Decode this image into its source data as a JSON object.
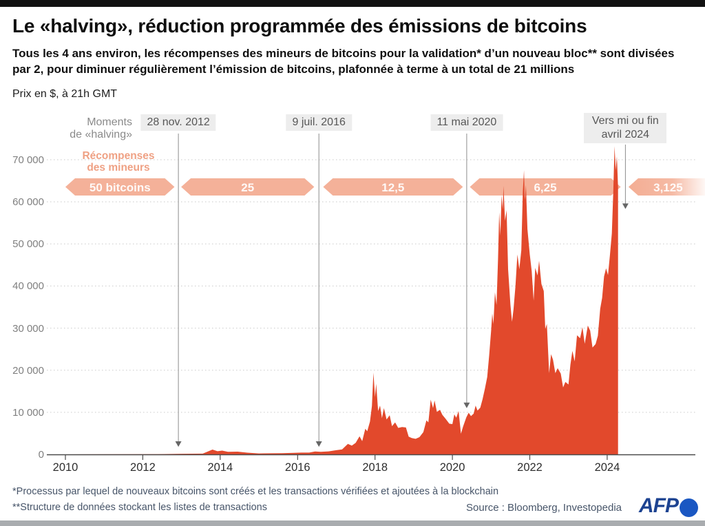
{
  "page": {
    "title": "Le «halving», réduction programmée des émissions de bitcoins",
    "subtitle": "Tous les 4 ans environ, les récompenses des mineurs de bitcoins pour la validation* d’un nouveau bloc** sont divisées par 2, pour diminuer régulièrement l’émission de bitcoins, plafonnée à terme à un total de 21 millions",
    "unit_note": "Prix en $, à 21h GMT"
  },
  "annotations": {
    "halving_moments_line1": "Moments",
    "halving_moments_line2": "de «halving»",
    "rewards_line1": "Récompenses",
    "rewards_line2": "des mineurs"
  },
  "footer": {
    "footnote1": "*Processus par lequel de nouveaux bitcoins sont créés et les transactions vérifiées et ajoutées à la blockchain",
    "footnote2": "**Structure de données stockant les listes de transactions",
    "source": "Source : Bloomberg, Investopedia",
    "logo_text": "AFP"
  },
  "colors": {
    "area_fill": "#e2492c",
    "banner_fill": "#f3a98e",
    "banner_text": "rgba(255,255,255,0.92)",
    "grid": "#c9c9c9",
    "axis": "#4b4b4b",
    "halving_line": "#8d8d8d",
    "arrowhead": "#666666"
  },
  "chart_data": {
    "type": "area",
    "title": "Le «halving», réduction programmée des émissions de bitcoins",
    "ylabel": "Prix en $, à 21h GMT",
    "xlabel": "",
    "grid": true,
    "ylim": [
      0,
      70000
    ],
    "xlim_years": [
      2009.55,
      2026.3
    ],
    "x_ticks": [
      {
        "year": 2010,
        "label": "2010"
      },
      {
        "year": 2012,
        "label": "2012"
      },
      {
        "year": 2014,
        "label": "2014"
      },
      {
        "year": 2016,
        "label": "2016"
      },
      {
        "year": 2018,
        "label": "2018"
      },
      {
        "year": 2020,
        "label": "2020"
      },
      {
        "year": 2022,
        "label": "2022"
      },
      {
        "year": 2024,
        "label": "2024"
      }
    ],
    "y_ticks": [
      {
        "value": 0,
        "label": "0"
      },
      {
        "value": 10000,
        "label": "10 000"
      },
      {
        "value": 20000,
        "label": "20 000"
      },
      {
        "value": 30000,
        "label": "30 000"
      },
      {
        "value": 40000,
        "label": "40 000"
      },
      {
        "value": 50000,
        "label": "50 000"
      },
      {
        "value": 60000,
        "label": "60 000"
      },
      {
        "value": 70000,
        "label": "70 000"
      }
    ],
    "halvings": [
      {
        "label": "28 nov. 2012",
        "year": 2012.92,
        "arrow_tip_value": 1800,
        "tall": false
      },
      {
        "label": "9 juil. 2016",
        "year": 2016.55,
        "arrow_tip_value": 1800,
        "tall": false
      },
      {
        "label": "11 mai 2020",
        "year": 2020.37,
        "arrow_tip_value": 11000,
        "tall": false
      },
      {
        "label": "Vers mi ou fin avril 2024",
        "year": 2024.47,
        "arrow_tip_value": 58300,
        "tall": true
      }
    ],
    "reward_banners": [
      {
        "label": "50 bitcoins",
        "from_year": 2010.0,
        "to_year": 2012.82,
        "fade_right": false
      },
      {
        "label": "25",
        "from_year": 2012.99,
        "to_year": 2016.43,
        "fade_right": false
      },
      {
        "label": "12,5",
        "from_year": 2016.66,
        "to_year": 2020.27,
        "fade_right": false
      },
      {
        "label": "6,25",
        "from_year": 2020.45,
        "to_year": 2024.35,
        "fade_right": false
      },
      {
        "label": "3,125",
        "from_year": 2024.55,
        "to_year": 2026.6,
        "fade_right": true
      }
    ],
    "series": [
      {
        "name": "Prix du bitcoin en $",
        "points": [
          [
            2010,
            0
          ],
          [
            2012.4,
            60
          ],
          [
            2013,
            140
          ],
          [
            2013.55,
            180
          ],
          [
            2013.8,
            1150
          ],
          [
            2013.93,
            760
          ],
          [
            2014.05,
            900
          ],
          [
            2014.2,
            620
          ],
          [
            2014.45,
            660
          ],
          [
            2014.7,
            410
          ],
          [
            2015,
            230
          ],
          [
            2015.3,
            260
          ],
          [
            2015.6,
            280
          ],
          [
            2015.9,
            380
          ],
          [
            2016.1,
            420
          ],
          [
            2016.3,
            430
          ],
          [
            2016.45,
            690
          ],
          [
            2016.6,
            620
          ],
          [
            2016.8,
            720
          ],
          [
            2017,
            990
          ],
          [
            2017.15,
            1200
          ],
          [
            2017.3,
            2500
          ],
          [
            2017.4,
            2100
          ],
          [
            2017.5,
            2750
          ],
          [
            2017.6,
            4300
          ],
          [
            2017.67,
            3150
          ],
          [
            2017.75,
            6100
          ],
          [
            2017.8,
            5500
          ],
          [
            2017.87,
            7800
          ],
          [
            2017.92,
            11500
          ],
          [
            2017.96,
            19400
          ],
          [
            2018,
            13600
          ],
          [
            2018.03,
            16800
          ],
          [
            2018.08,
            10300
          ],
          [
            2018.13,
            11600
          ],
          [
            2018.18,
            8600
          ],
          [
            2018.23,
            11000
          ],
          [
            2018.3,
            8300
          ],
          [
            2018.38,
            9300
          ],
          [
            2018.44,
            6700
          ],
          [
            2018.52,
            7600
          ],
          [
            2018.6,
            6300
          ],
          [
            2018.7,
            6500
          ],
          [
            2018.8,
            6400
          ],
          [
            2018.87,
            4200
          ],
          [
            2018.95,
            3900
          ],
          [
            2019.05,
            3700
          ],
          [
            2019.15,
            4100
          ],
          [
            2019.25,
            5300
          ],
          [
            2019.33,
            8100
          ],
          [
            2019.38,
            7600
          ],
          [
            2019.44,
            13000
          ],
          [
            2019.5,
            11000
          ],
          [
            2019.54,
            12800
          ],
          [
            2019.6,
            10100
          ],
          [
            2019.68,
            10600
          ],
          [
            2019.74,
            9400
          ],
          [
            2019.83,
            8400
          ],
          [
            2019.92,
            7300
          ],
          [
            2020,
            7200
          ],
          [
            2020.05,
            9500
          ],
          [
            2020.1,
            8700
          ],
          [
            2020.16,
            10300
          ],
          [
            2020.22,
            4900
          ],
          [
            2020.28,
            6700
          ],
          [
            2020.36,
            8800
          ],
          [
            2020.42,
            9900
          ],
          [
            2020.48,
            9100
          ],
          [
            2020.55,
            9700
          ],
          [
            2020.6,
            11600
          ],
          [
            2020.65,
            10400
          ],
          [
            2020.72,
            11100
          ],
          [
            2020.78,
            13100
          ],
          [
            2020.84,
            15600
          ],
          [
            2020.9,
            18400
          ],
          [
            2020.95,
            23500
          ],
          [
            2021,
            29300
          ],
          [
            2021.03,
            33500
          ],
          [
            2021.06,
            31000
          ],
          [
            2021.1,
            38500
          ],
          [
            2021.14,
            35500
          ],
          [
            2021.18,
            46500
          ],
          [
            2021.21,
            57500
          ],
          [
            2021.24,
            52000
          ],
          [
            2021.27,
            61500
          ],
          [
            2021.3,
            58200
          ],
          [
            2021.32,
            63800
          ],
          [
            2021.36,
            55500
          ],
          [
            2021.4,
            58000
          ],
          [
            2021.44,
            44000
          ],
          [
            2021.5,
            35500
          ],
          [
            2021.54,
            31500
          ],
          [
            2021.58,
            34500
          ],
          [
            2021.63,
            40000
          ],
          [
            2021.68,
            47500
          ],
          [
            2021.73,
            44000
          ],
          [
            2021.78,
            48500
          ],
          [
            2021.82,
            62500
          ],
          [
            2021.85,
            67500
          ],
          [
            2021.87,
            60500
          ],
          [
            2021.9,
            64000
          ],
          [
            2021.94,
            53500
          ],
          [
            2022,
            47500
          ],
          [
            2022.05,
            43500
          ],
          [
            2022.1,
            36500
          ],
          [
            2022.14,
            44300
          ],
          [
            2022.2,
            42500
          ],
          [
            2022.24,
            46000
          ],
          [
            2022.3,
            40500
          ],
          [
            2022.36,
            38800
          ],
          [
            2022.4,
            29800
          ],
          [
            2022.44,
            31000
          ],
          [
            2022.5,
            19300
          ],
          [
            2022.55,
            23800
          ],
          [
            2022.6,
            22500
          ],
          [
            2022.66,
            19300
          ],
          [
            2022.72,
            20500
          ],
          [
            2022.8,
            19200
          ],
          [
            2022.86,
            15900
          ],
          [
            2022.92,
            17200
          ],
          [
            2023,
            16600
          ],
          [
            2023.05,
            21300
          ],
          [
            2023.1,
            24600
          ],
          [
            2023.16,
            22100
          ],
          [
            2023.22,
            28300
          ],
          [
            2023.3,
            27600
          ],
          [
            2023.36,
            30200
          ],
          [
            2023.42,
            26300
          ],
          [
            2023.5,
            30600
          ],
          [
            2023.56,
            29400
          ],
          [
            2023.62,
            25400
          ],
          [
            2023.7,
            26200
          ],
          [
            2023.76,
            28200
          ],
          [
            2023.82,
            34600
          ],
          [
            2023.87,
            37200
          ],
          [
            2023.92,
            42300
          ],
          [
            2023.97,
            44200
          ],
          [
            2024.02,
            42600
          ],
          [
            2024.07,
            47300
          ],
          [
            2024.12,
            52500
          ],
          [
            2024.16,
            63000
          ],
          [
            2024.19,
            73200
          ],
          [
            2024.22,
            67500
          ],
          [
            2024.25,
            70800
          ],
          [
            2024.28,
            63500
          ]
        ]
      }
    ]
  }
}
